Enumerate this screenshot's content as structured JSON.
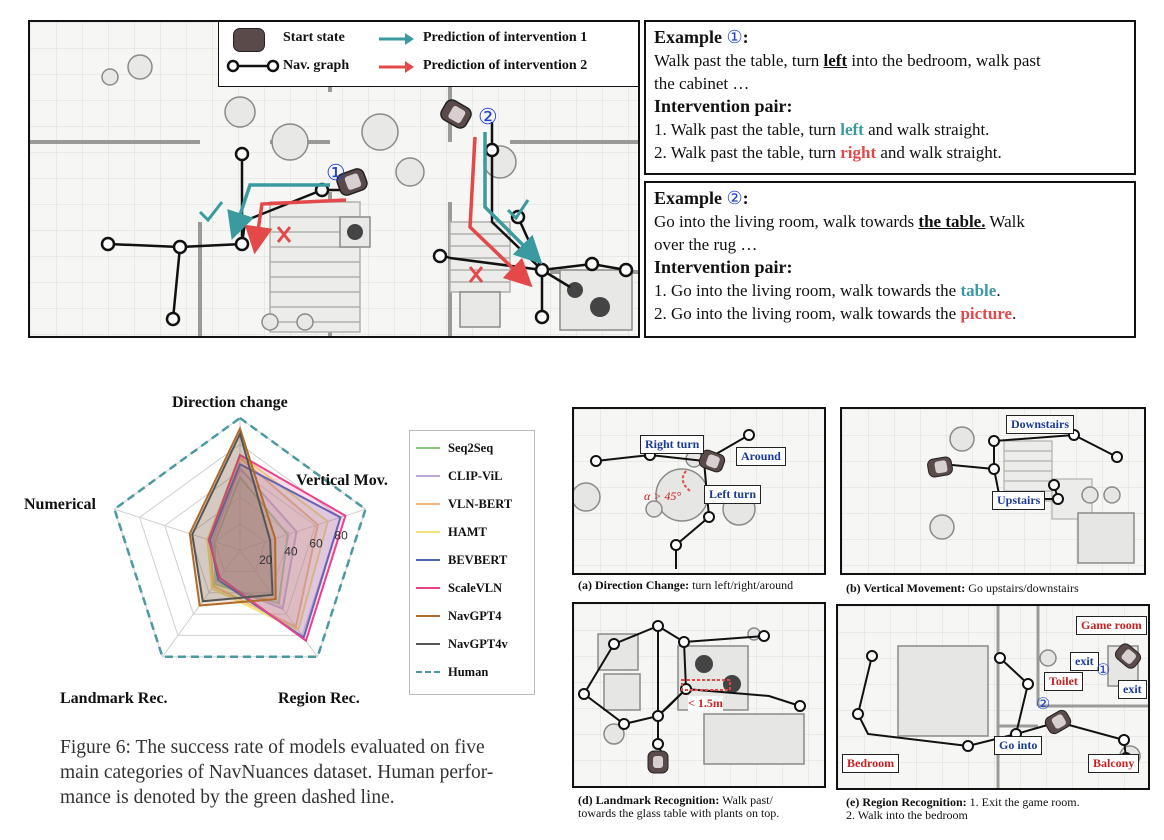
{
  "top_legend": {
    "start_state": "Start state",
    "nav_graph": "Nav. graph",
    "pred1": "Prediction of intervention 1",
    "pred2": "Prediction of intervention 2"
  },
  "top_map_markers": {
    "m1": "①",
    "m2": "②"
  },
  "example1": {
    "title": "Example",
    "num": "①",
    "line_a": "Walk past the table, turn ",
    "line_a_key": "left",
    "line_a_rest": " into the bedroom, walk past",
    "line_b": "the cabinet …",
    "pair_title": "Intervention pair:",
    "p1_pre": "1. Walk past the table, turn ",
    "p1_key": "left",
    "p1_post": " and walk straight.",
    "p2_pre": "2. Walk past the table, turn ",
    "p2_key": "right",
    "p2_post": " and walk straight."
  },
  "example2": {
    "title": "Example",
    "num": "②",
    "line_a": "Go into the living room, walk towards ",
    "line_a_key": "the table.",
    "line_a_rest": "  Walk",
    "line_b": "over the rug …",
    "pair_title": "Intervention pair:",
    "p1_pre": "1. Go into the living room, walk towards the ",
    "p1_key": "table",
    "p1_post": ".",
    "p2_pre": "2. Go into the living room, walk towards the ",
    "p2_key": "picture",
    "p2_post": "."
  },
  "chart_data": {
    "type": "radar",
    "axes": [
      "Direction change",
      "Vertical Mov.",
      "Region Rec.",
      "Landmark Rec.",
      "Numerical"
    ],
    "rlim": [
      0,
      100
    ],
    "ticks": [
      20,
      40,
      60,
      80
    ],
    "series": [
      {
        "name": "Seq2Seq",
        "color": "#88c77a",
        "dash": false,
        "values": [
          55,
          38,
          50,
          32,
          20
        ]
      },
      {
        "name": "CLIP-ViL",
        "color": "#b9a6dc",
        "dash": false,
        "values": [
          62,
          45,
          55,
          30,
          22
        ]
      },
      {
        "name": "VLN-BERT",
        "color": "#f3b77c",
        "dash": false,
        "values": [
          70,
          62,
          72,
          34,
          24
        ]
      },
      {
        "name": "HAMT",
        "color": "#f2e27a",
        "dash": false,
        "values": [
          72,
          70,
          75,
          36,
          26
        ]
      },
      {
        "name": "BEVBERT",
        "color": "#4a69bd",
        "dash": false,
        "values": [
          65,
          80,
          82,
          28,
          24
        ]
      },
      {
        "name": "ScaleVLN",
        "color": "#e8448c",
        "dash": false,
        "values": [
          72,
          84,
          85,
          26,
          25
        ]
      },
      {
        "name": "NavGPT4",
        "color": "#b06a2a",
        "dash": false,
        "values": [
          92,
          28,
          46,
          52,
          40
        ]
      },
      {
        "name": "NavGPT4v",
        "color": "#555555",
        "dash": false,
        "values": [
          88,
          24,
          42,
          48,
          38
        ]
      },
      {
        "name": "Human",
        "color": "#4a9aa0",
        "dash": true,
        "values": [
          100,
          100,
          100,
          100,
          100
        ]
      }
    ]
  },
  "figure_caption": {
    "l1": "Figure 6: The success rate of models evaluated on five",
    "l2": "main categories of NavNuances dataset. Human perfor-",
    "l3": "mance is denoted by the green dashed line."
  },
  "panel_a": {
    "right_turn": "Right turn",
    "around": "Around",
    "left_turn": "Left turn",
    "angle": "α > 45°",
    "cap_bold": "(a) Direction Change:",
    "cap_rest": " turn left/right/around"
  },
  "panel_b": {
    "downstairs": "Downstairs",
    "upstairs": "Upstairs",
    "cap_bold": "(b) Vertical Movement:",
    "cap_rest": " Go upstairs/downstairs"
  },
  "panel_d": {
    "dist": "< 1.5m",
    "cap_bold": "(d) Landmark Recognition:",
    "cap_rest": " Walk past/",
    "cap_l2": "towards the glass table with plants on top."
  },
  "panel_e": {
    "game_room": "Game room",
    "exit1": "exit",
    "toilet": "Toilet",
    "exit2": "exit",
    "go_into": "Go into",
    "bedroom": "Bedroom",
    "balcony": "Balcony",
    "m1": "①",
    "m2": "②",
    "cap_bold": "(e) Region Recognition:",
    "cap_rest": " 1. Exit the game room.",
    "cap_l2": "2. Walk into the bedroom"
  },
  "colors": {
    "teal": "#3a9aa0",
    "red": "#e44848",
    "blue_text": "#1a3a9a",
    "label_red": "#c82020"
  }
}
